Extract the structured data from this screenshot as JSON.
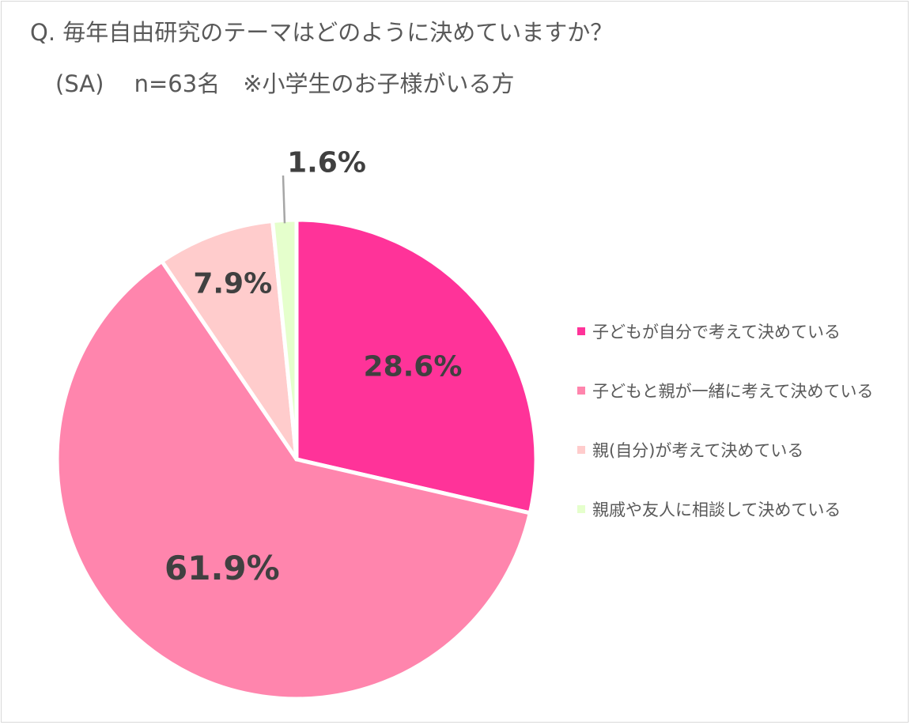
{
  "title": "Q. 毎年自由研究のテーマはどのように決めていますか？",
  "subtitle": "(SA)　 n=63名　※小学生のお子様がいる方",
  "chart_data": {
    "type": "pie",
    "title": "Q. 毎年自由研究のテーマはどのように決めていますか？",
    "subtitle": "(SA)　 n=63名　※小学生のお子様がいる方",
    "start_angle_deg": 0,
    "direction": "clockwise",
    "legend_position": "right",
    "slices": [
      {
        "label": "子どもが自分で考えて決めている",
        "value": 28.6,
        "display": "28.6%",
        "color": "#ff3399"
      },
      {
        "label": "子どもと親が一緒に考えて決めている",
        "value": 61.9,
        "display": "61.9%",
        "color": "#ff85ad"
      },
      {
        "label": "親(自分)が考えて決めている",
        "value": 7.9,
        "display": "7.9%",
        "color": "#ffcccc"
      },
      {
        "label": "親戚や友人に相談して決めている",
        "value": 1.6,
        "display": "1.6%",
        "color": "#e5ffcc"
      }
    ]
  }
}
